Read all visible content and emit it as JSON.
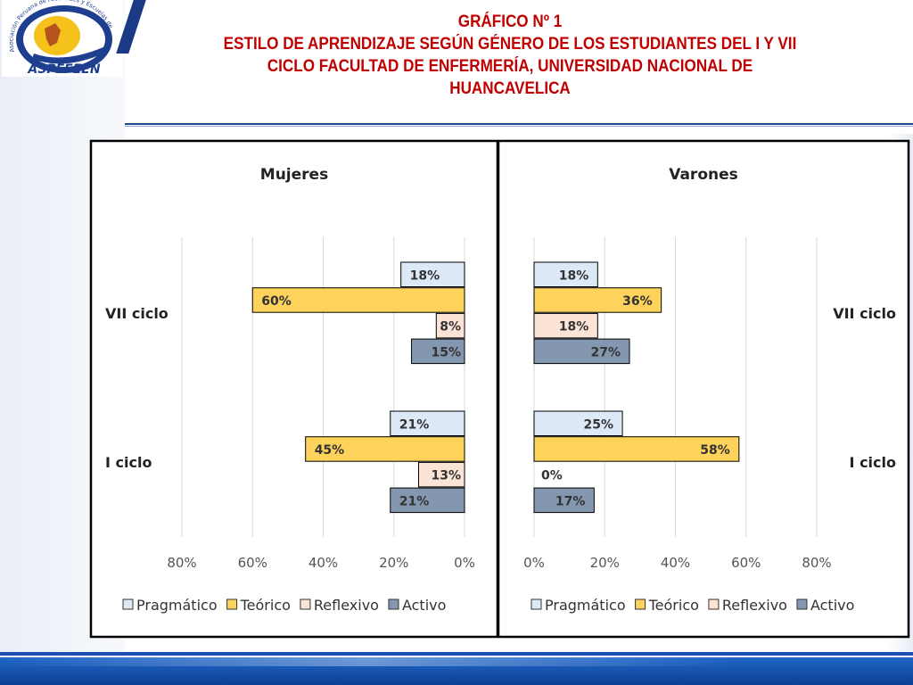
{
  "slide": {
    "title_lines": [
      "GRÁFICO Nº 1",
      "ESTILO DE APRENDIZAJE SEGÚN GÉNERO DE LOS ESTUDIANTES DEL I Y VII",
      "CICLO FACULTAD DE ENFERMERÍA, UNIVERSIDAD NACIONAL DE",
      "HUANCAVELICA"
    ],
    "logo": {
      "name": "ASPEFEEN",
      "arc_text": "Asociación Peruana de Facultades y Escuelas de Enfermería"
    }
  },
  "chart_data": [
    {
      "type": "bar",
      "orientation": "horizontal",
      "direction": "reversed",
      "title": "Mujeres",
      "categories": [
        "VII ciclo",
        "I ciclo"
      ],
      "series": [
        {
          "name": "Pragmático",
          "values": [
            18,
            21
          ]
        },
        {
          "name": "Teórico",
          "values": [
            60,
            45
          ]
        },
        {
          "name": "Reflexivo",
          "values": [
            8,
            13
          ]
        },
        {
          "name": "Activo",
          "values": [
            15,
            21
          ]
        }
      ],
      "xlim": [
        0,
        80
      ],
      "xticks": [
        "80%",
        "60%",
        "40%",
        "20%",
        "0%"
      ],
      "value_suffix": "%",
      "legend_position": "bottom",
      "grid": true
    },
    {
      "type": "bar",
      "orientation": "horizontal",
      "direction": "normal",
      "title": "Varones",
      "categories": [
        "VII ciclo",
        "I ciclo"
      ],
      "series": [
        {
          "name": "Pragmático",
          "values": [
            18,
            25
          ]
        },
        {
          "name": "Teórico",
          "values": [
            36,
            58
          ]
        },
        {
          "name": "Reflexivo",
          "values": [
            18,
            0
          ]
        },
        {
          "name": "Activo",
          "values": [
            27,
            17
          ]
        }
      ],
      "xlim": [
        0,
        80
      ],
      "xticks": [
        "0%",
        "20%",
        "40%",
        "60%",
        "80%"
      ],
      "value_suffix": "%",
      "legend_position": "bottom",
      "grid": true
    }
  ],
  "colors": {
    "Pragmático": "#dde9f6",
    "Teórico": "#fdd35c",
    "Reflexivo": "#fbe3d6",
    "Activo": "#8497b0",
    "title_red": "#c00000"
  }
}
